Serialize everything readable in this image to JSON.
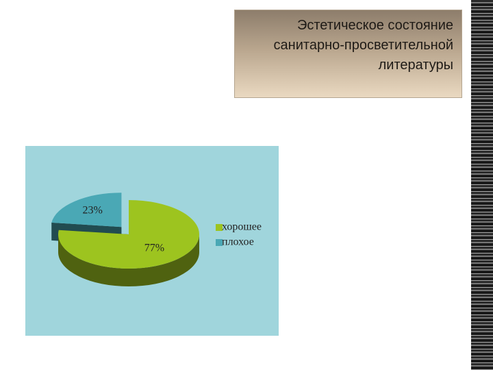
{
  "chart_data": {
    "type": "pie3d",
    "title": "Эстетическое состояние санитарно-просветительной литературы",
    "categories": [
      "хорошее",
      "плохое"
    ],
    "values": [
      77,
      23
    ],
    "value_labels": [
      "77%",
      "23%"
    ],
    "colors": [
      "#9dc41f",
      "#4aa8b5"
    ]
  }
}
